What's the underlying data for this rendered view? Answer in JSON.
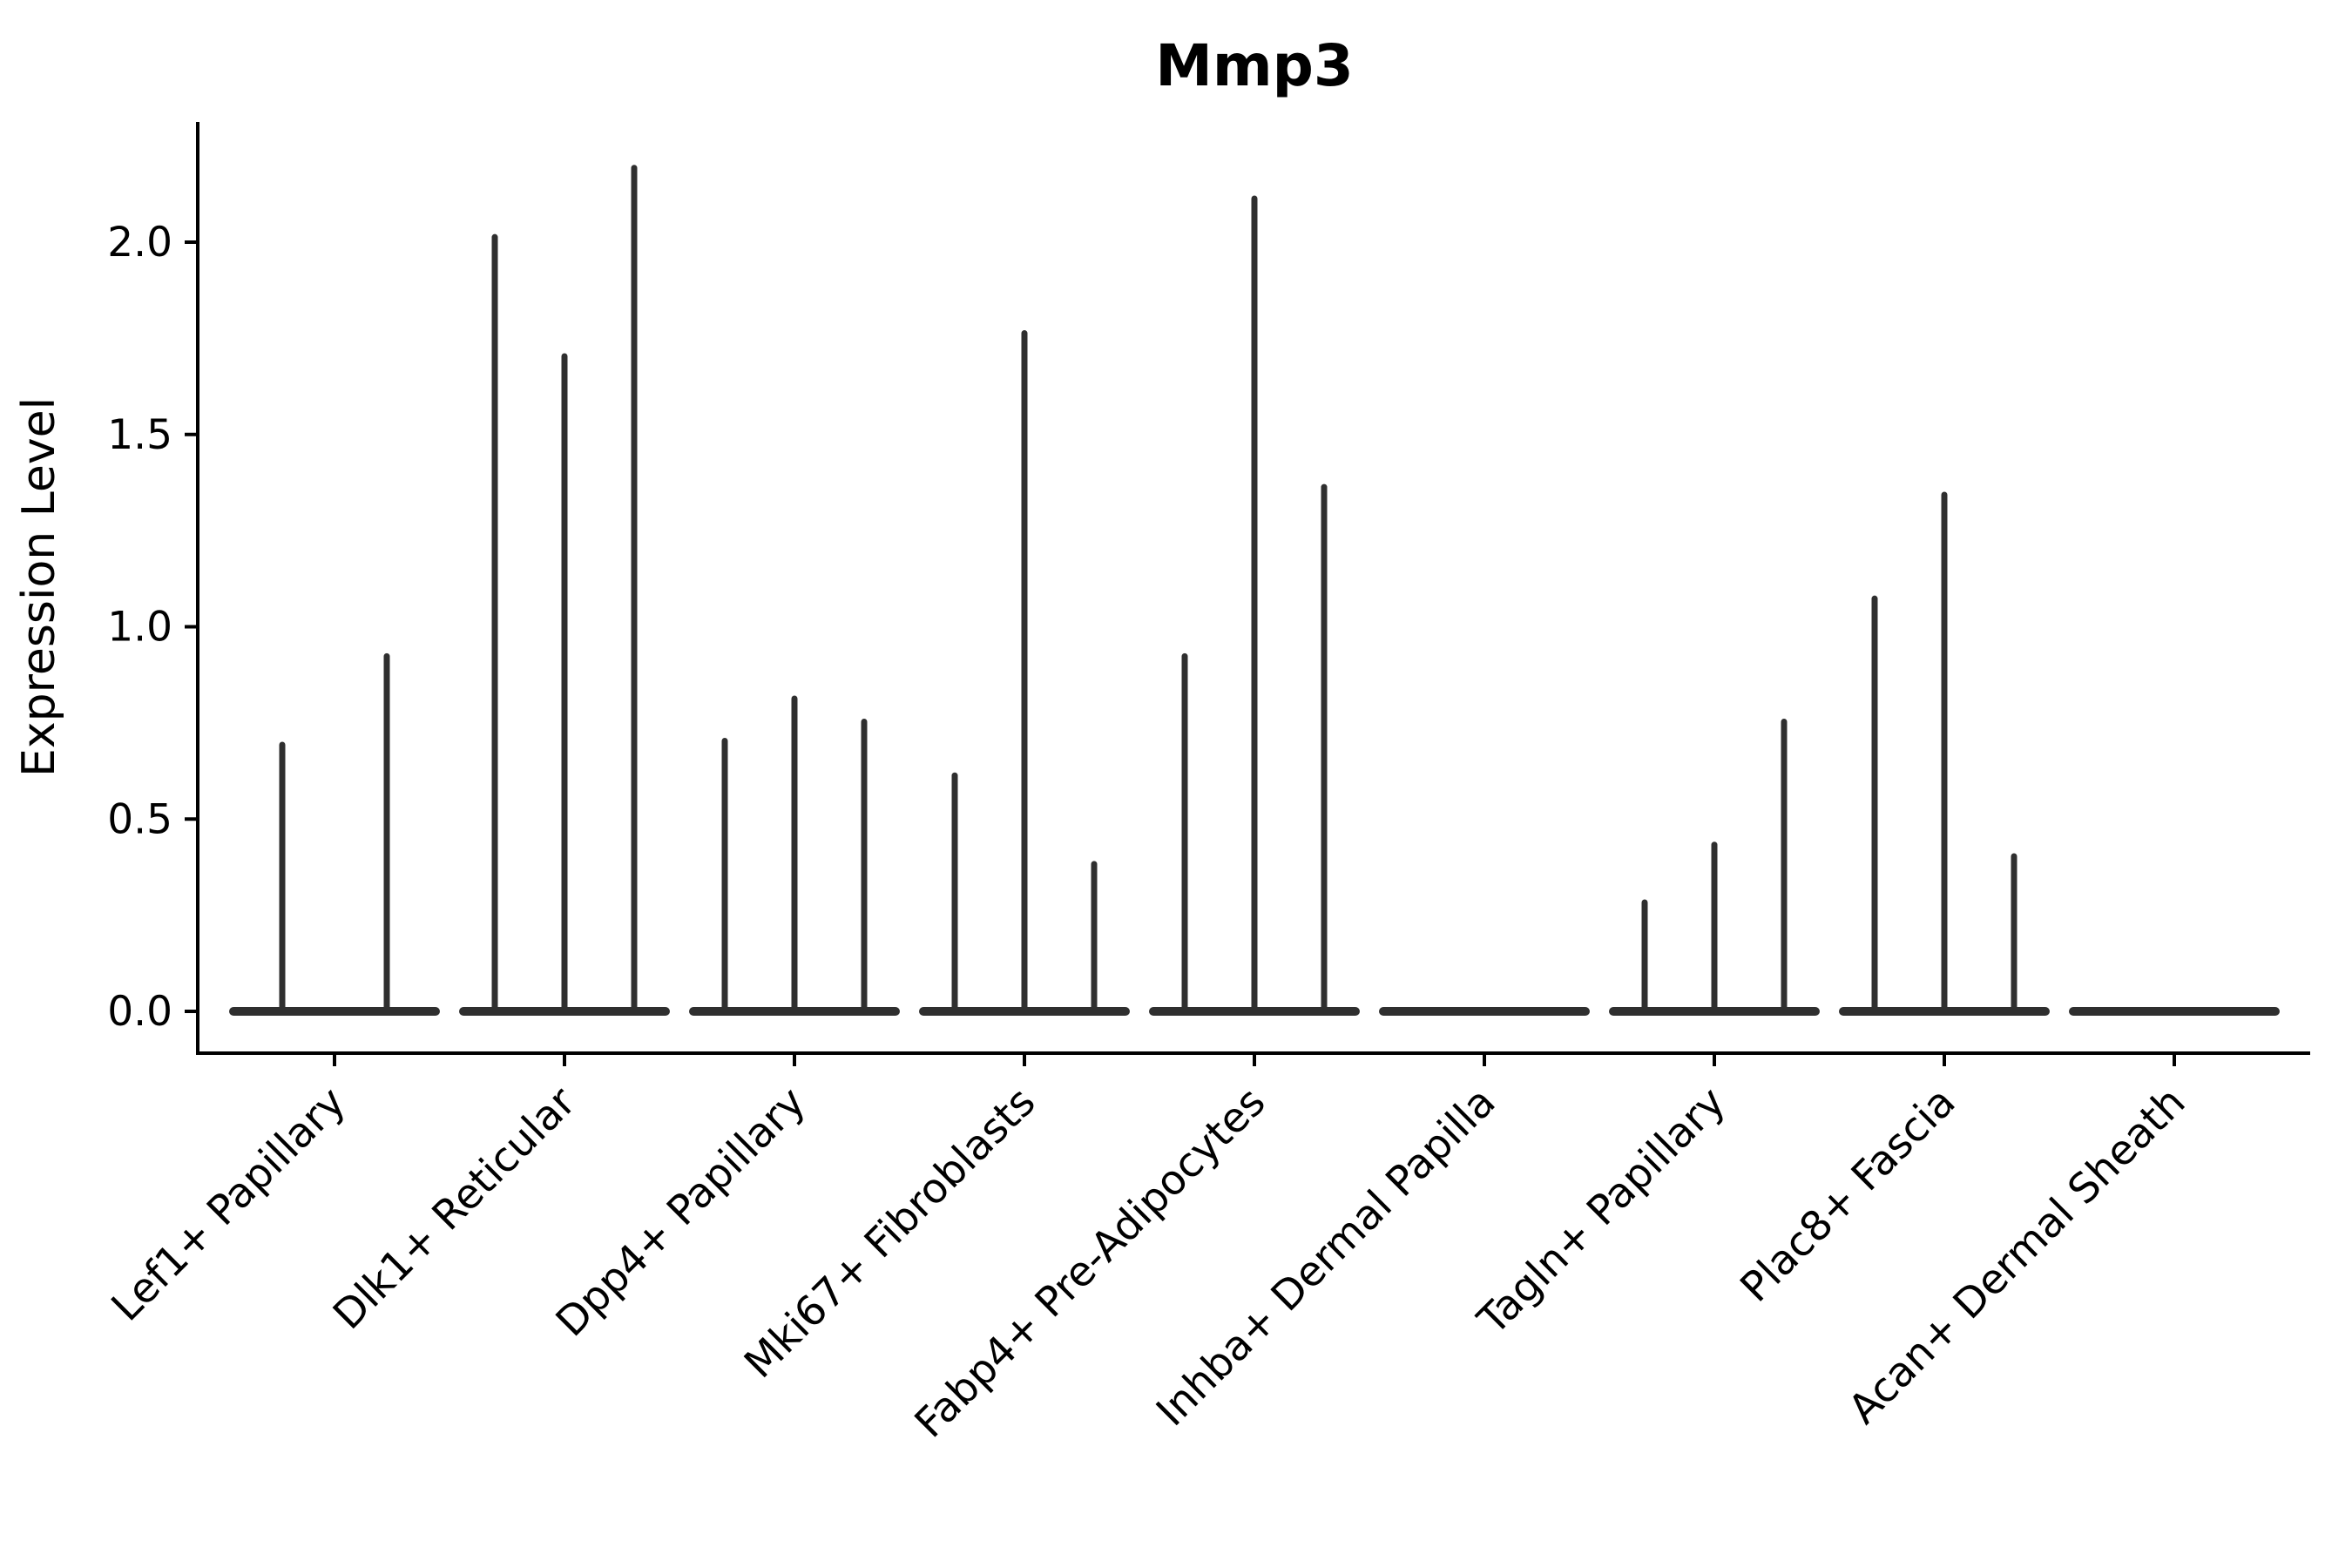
{
  "title": "Mmp3",
  "colors": {
    "background": "#ffffff",
    "axis": "#000000",
    "text": "#000000",
    "violin": "#2f2f2f"
  },
  "chart_data": {
    "type": "violin",
    "title": "Mmp3",
    "xlabel": "",
    "ylabel": "Expression Level",
    "ylim": [
      0,
      2.3
    ],
    "yticks": [
      0.0,
      0.5,
      1.0,
      1.5,
      2.0
    ],
    "ytick_labels": [
      "0.0",
      "0.5",
      "1.0",
      "1.5",
      "2.0"
    ],
    "grid": "off",
    "legend": "none",
    "description": "Violin plot of Mmp3 expression per fibroblast subtype; most cells are at 0 so each violin collapses to a flat base at y=0 with a thin spike up to the maximum expression value.",
    "categories": [
      "Lef1+ Papillary",
      "Dlk1+ Reticular",
      "Dpp4+ Papillary",
      "Mki67+ Fibroblasts",
      "Fabp4+ Pre-Adipocytes",
      "Inhba+ Dermal Papilla",
      "Tagln+ Papillary",
      "Plac8+ Fascia",
      "Acan+ Dermal Sheath"
    ],
    "groups": [
      {
        "label": "Lef1+ Papillary",
        "violin_maxima": [
          0.7,
          0.93
        ]
      },
      {
        "label": "Dlk1+ Reticular",
        "violin_maxima": [
          2.02,
          1.71,
          2.2
        ]
      },
      {
        "label": "Dpp4+ Papillary",
        "violin_maxima": [
          0.71,
          0.82,
          0.76
        ]
      },
      {
        "label": "Mki67+ Fibroblasts",
        "violin_maxima": [
          0.62,
          1.77,
          0.39
        ]
      },
      {
        "label": "Fabp4+ Pre-Adipocytes",
        "violin_maxima": [
          0.93,
          2.12,
          1.37
        ]
      },
      {
        "label": "Inhba+ Dermal Papilla",
        "violin_maxima": [
          0,
          0,
          0
        ]
      },
      {
        "label": "Tagln+ Papillary",
        "violin_maxima": [
          0.29,
          0.44,
          0.76
        ]
      },
      {
        "label": "Plac8+ Fascia",
        "violin_maxima": [
          1.08,
          1.35,
          0.41
        ]
      },
      {
        "label": "Acan+ Dermal Sheath",
        "violin_maxima": [
          0,
          0,
          0
        ]
      }
    ]
  }
}
